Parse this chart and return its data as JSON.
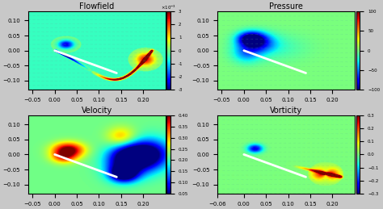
{
  "titles": [
    "Flowfield",
    "Pressure",
    "Velocity",
    "Vorticity"
  ],
  "xlim": [
    -0.06,
    0.25
  ],
  "ylim": [
    -0.13,
    0.13
  ],
  "colorbar_ranges": {
    "Flowfield": [
      -0.003,
      0.003
    ],
    "Pressure": [
      -100,
      100
    ],
    "Velocity": [
      0.05,
      0.4
    ],
    "Vorticity": [
      -0.3,
      0.3
    ]
  },
  "bg_color": "#c8c8c8",
  "airfoil_color": "white",
  "airfoil_lw": 2.0,
  "panel_bg": "#80c0a0",
  "xticks": [
    -0.05,
    0,
    0.05,
    0.1,
    0.15,
    0.2
  ],
  "yticks": [
    -0.1,
    -0.05,
    0,
    0.05,
    0.1
  ],
  "tick_fontsize": 5,
  "title_fontsize": 7
}
